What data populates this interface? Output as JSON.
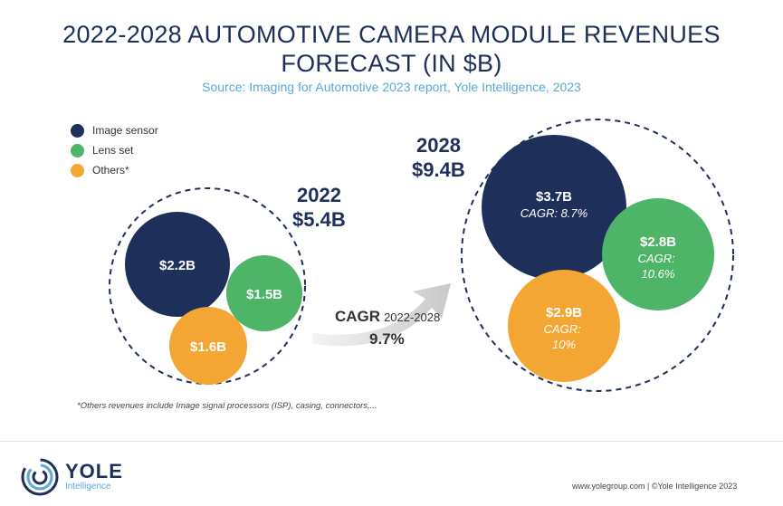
{
  "header": {
    "title_line1": "2022-2028 AUTOMOTIVE CAMERA MODULE REVENUES",
    "title_line2": "FORECAST (IN $B)",
    "subtitle": "Source: Imaging for Automotive 2023 report, Yole Intelligence, 2023"
  },
  "legend": [
    {
      "label": "Image sensor",
      "color": "#1e2f5a"
    },
    {
      "label": "Lens set",
      "color": "#4db468"
    },
    {
      "label": "Others*",
      "color": "#f3a633"
    }
  ],
  "chart_data": {
    "type": "bubble",
    "title": "2022-2028 AUTOMOTIVE CAMERA MODULE REVENUES FORECAST (IN $B)",
    "unit": "$B",
    "groups": [
      {
        "year": "2022",
        "total_label": "$5.4B",
        "total": 5.4,
        "segments": [
          {
            "category": "Image sensor",
            "value": 2.2,
            "label": "$2.2B",
            "cagr": ""
          },
          {
            "category": "Lens set",
            "value": 1.5,
            "label": "$1.5B",
            "cagr": ""
          },
          {
            "category": "Others*",
            "value": 1.6,
            "label": "$1.6B",
            "cagr": ""
          }
        ]
      },
      {
        "year": "2028",
        "total_label": "$9.4B",
        "total": 9.4,
        "segments": [
          {
            "category": "Image sensor",
            "value": 3.7,
            "label": "$3.7B",
            "cagr": "CAGR: 8.7%"
          },
          {
            "category": "Lens set",
            "value": 2.8,
            "label": "$2.8B",
            "cagr": "CAGR: 10.6%"
          },
          {
            "category": "Others*",
            "value": 2.9,
            "label": "$2.9B",
            "cagr": "CAGR: 10%"
          }
        ]
      }
    ],
    "overall_cagr": {
      "label": "CAGR",
      "period": "2022-2028",
      "value": "9.7%"
    }
  },
  "footnote": "*Others revenues include Image signal processors (ISP), casing, connectors,...",
  "footer": {
    "logo_name": "YOLE",
    "logo_sub": "Intelligence",
    "credits": "www.yolegroup.com | ©Yole Intelligence 2023"
  }
}
